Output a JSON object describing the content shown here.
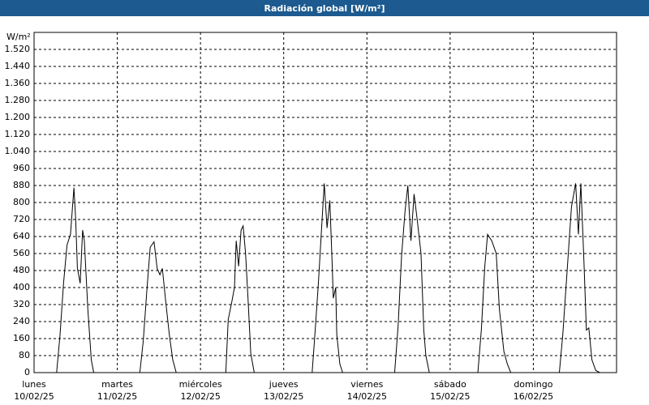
{
  "chart_data": {
    "type": "line",
    "title": "Radiación global [W/m²]",
    "y_unit": "W/m²",
    "x": [
      0,
      6.5,
      7.5,
      8.5,
      9.5,
      10.5,
      11.5,
      12,
      12.5,
      13.3,
      14,
      14.5,
      15.5,
      16.5,
      17.2,
      30.5,
      31.5,
      32.5,
      33.5,
      34.6,
      35.5,
      36.3,
      37,
      38,
      39,
      40,
      41,
      55.3,
      56,
      57,
      57.8,
      58.3,
      59,
      59.7,
      60.3,
      61,
      61.7,
      62.5,
      63.5,
      80.2,
      81,
      82,
      83,
      83.7,
      84.5,
      85.3,
      86,
      86.3,
      87,
      87.3,
      88.2,
      89,
      104,
      105,
      106,
      107,
      107.8,
      108.7,
      109.6,
      110.5,
      111.6,
      112.4,
      113,
      114,
      128,
      129,
      130,
      130.8,
      132,
      133.3,
      134.2,
      135.5,
      136.5,
      137.5,
      151.5,
      152.5,
      153.5,
      155,
      156.2,
      157,
      157.7,
      158.6,
      159.3,
      160,
      160.9,
      162,
      163.2,
      168
    ],
    "series": [
      {
        "name": "Radiación global",
        "color": "#000000",
        "values": [
          0,
          0,
          180,
          420,
          600,
          650,
          870,
          720,
          490,
          420,
          670,
          620,
          300,
          60,
          0,
          0,
          150,
          380,
          590,
          615,
          490,
          460,
          490,
          330,
          180,
          60,
          0,
          0,
          250,
          330,
          400,
          620,
          500,
          670,
          690,
          560,
          350,
          90,
          0,
          0,
          180,
          420,
          700,
          890,
          680,
          810,
          500,
          350,
          400,
          180,
          40,
          0,
          0,
          220,
          550,
          760,
          880,
          620,
          840,
          720,
          560,
          200,
          80,
          0,
          0,
          200,
          500,
          650,
          620,
          560,
          300,
          100,
          40,
          0,
          0,
          180,
          420,
          780,
          890,
          650,
          890,
          520,
          200,
          210,
          60,
          10,
          0,
          0
        ]
      }
    ],
    "xlim": [
      0,
      168
    ],
    "xticks": [
      {
        "value": 0,
        "label": "lunes"
      },
      {
        "value": 24,
        "label": "martes"
      },
      {
        "value": 48,
        "label": "miércoles"
      },
      {
        "value": 72,
        "label": "jueves"
      },
      {
        "value": 96,
        "label": "viernes"
      },
      {
        "value": 120,
        "label": "sábado"
      },
      {
        "value": 144,
        "label": "domingo"
      }
    ],
    "xtick_dates": [
      "10/02/25",
      "11/02/25",
      "12/02/25",
      "13/02/25",
      "14/02/25",
      "15/02/25",
      "16/02/25"
    ],
    "ylim": [
      0,
      1600
    ],
    "yticks": [
      0,
      80,
      160,
      240,
      320,
      400,
      480,
      560,
      640,
      720,
      800,
      880,
      960,
      {
        "value": 1040,
        "label": "1.040"
      },
      {
        "value": 1120,
        "label": "1.120"
      },
      {
        "value": 1200,
        "label": "1.200"
      },
      {
        "value": 1280,
        "label": "1.280"
      },
      {
        "value": 1360,
        "label": "1.360"
      },
      {
        "value": 1440,
        "label": "1.440"
      },
      {
        "value": 1520,
        "label": "1.520"
      }
    ],
    "grid": true
  }
}
